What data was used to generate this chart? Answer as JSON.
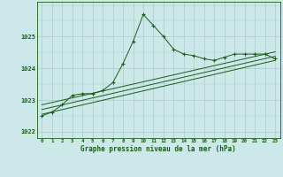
{
  "title": "Graphe pression niveau de la mer (hPa)",
  "bg_color": "#cce8e8",
  "grid_color": "#aacccc",
  "line_color": "#1a5c1a",
  "xlim": [
    -0.5,
    23.5
  ],
  "ylim": [
    1021.8,
    1026.1
  ],
  "yticks": [
    1022,
    1023,
    1024,
    1025
  ],
  "xticks": [
    0,
    1,
    2,
    3,
    4,
    5,
    6,
    7,
    8,
    9,
    10,
    11,
    12,
    13,
    14,
    15,
    16,
    17,
    18,
    19,
    20,
    21,
    22,
    23
  ],
  "main_line_x": [
    0,
    1,
    2,
    3,
    4,
    5,
    6,
    7,
    8,
    9,
    10,
    11,
    12,
    13,
    14,
    15,
    16,
    17,
    18,
    19,
    20,
    21,
    22,
    23
  ],
  "main_line_y": [
    1022.5,
    1022.62,
    1022.85,
    1023.15,
    1023.2,
    1023.2,
    1023.3,
    1023.55,
    1024.15,
    1024.85,
    1025.7,
    1025.35,
    1025.0,
    1024.6,
    1024.45,
    1024.4,
    1024.3,
    1024.25,
    1024.35,
    1024.45,
    1024.45,
    1024.45,
    1024.45,
    1024.3
  ],
  "line2_x": [
    0,
    23
  ],
  "line2_y": [
    1022.55,
    1024.25
  ],
  "line3_x": [
    0,
    23
  ],
  "line3_y": [
    1022.7,
    1024.38
  ],
  "line4_x": [
    0,
    23
  ],
  "line4_y": [
    1022.85,
    1024.52
  ]
}
